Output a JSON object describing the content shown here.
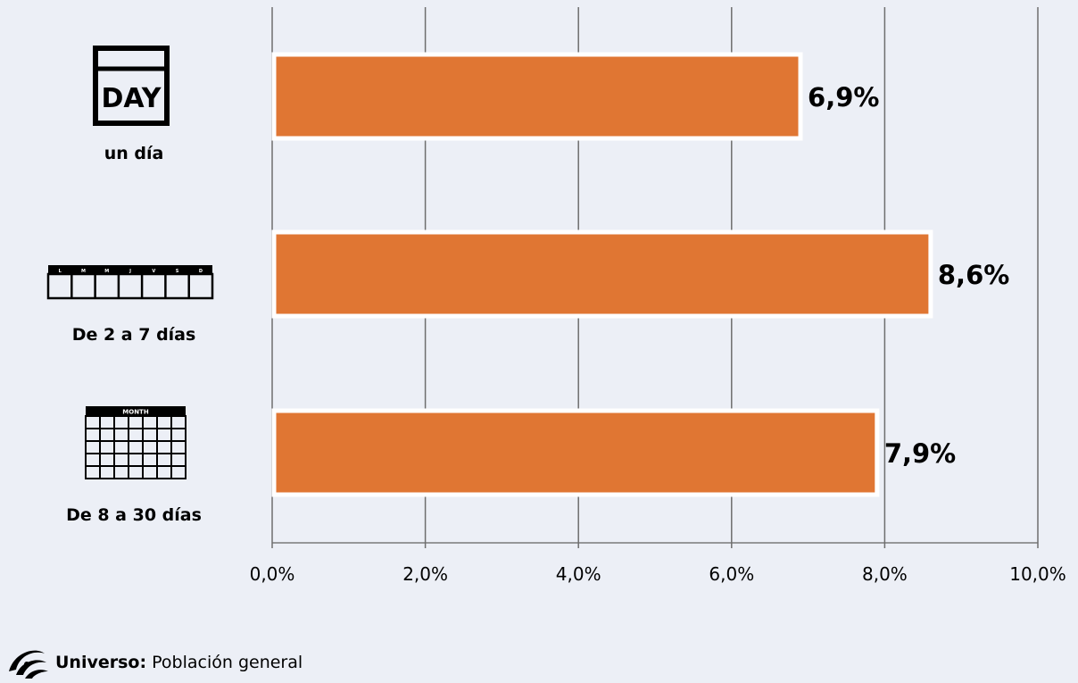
{
  "chart_data": {
    "type": "bar",
    "orientation": "horizontal",
    "categories": [
      "un día",
      "De 2 a 7 días",
      "De 8 a 30 días"
    ],
    "values": [
      6.9,
      8.6,
      7.9
    ],
    "value_labels": [
      "6,9%",
      "8,6%",
      "7,9%"
    ],
    "xlim": [
      0,
      10
    ],
    "xticks": [
      0,
      2,
      4,
      6,
      8,
      10
    ],
    "xtick_labels": [
      "0,0%",
      "2,0%",
      "4,0%",
      "6,0%",
      "8,0%",
      "10,0%"
    ],
    "grid": "vertical",
    "bar_color": "#e07633",
    "category_icons": [
      "day-calendar-icon",
      "week-calendar-icon",
      "month-calendar-icon"
    ]
  },
  "icons": {
    "day_text": "DAY",
    "week_days": [
      "L",
      "M",
      "M",
      "J",
      "V",
      "S",
      "D"
    ],
    "month_text": "MONTH"
  },
  "footer": {
    "label": "Universo:",
    "value": "Población general",
    "logo_icon": "swirl-logo-icon"
  }
}
